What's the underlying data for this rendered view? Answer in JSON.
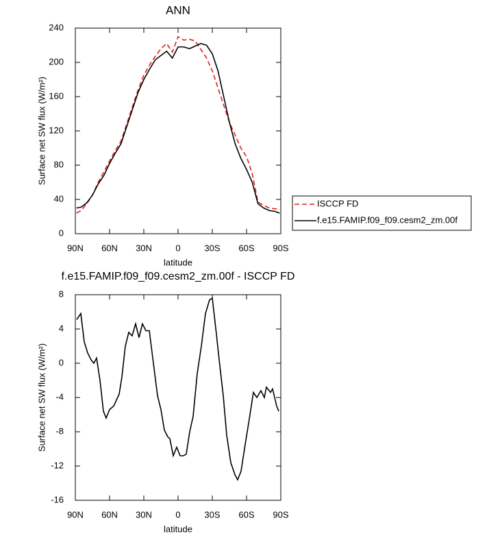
{
  "chart_data": [
    {
      "type": "line",
      "title": "ANN",
      "xlabel": "latitude",
      "ylabel": "Surface net SW flux (W/m²)",
      "x": [
        89,
        85,
        80,
        75,
        70,
        65,
        60,
        55,
        50,
        45,
        40,
        35,
        30,
        25,
        20,
        15,
        10,
        5,
        0,
        -5,
        -10,
        -15,
        -20,
        -25,
        -30,
        -35,
        -40,
        -45,
        -50,
        -55,
        -60,
        -65,
        -70,
        -75,
        -80,
        -85,
        -89
      ],
      "series": [
        {
          "name": "ISCCP FD",
          "color": "#e41a1c",
          "line_style": "dashed",
          "values": [
            24,
            27,
            35,
            45,
            60,
            72,
            85,
            97,
            108,
            128,
            148,
            168,
            185,
            197,
            207,
            216,
            222,
            212,
            230,
            226,
            227,
            225,
            215,
            205,
            190,
            170,
            150,
            130,
            115,
            100,
            90,
            70,
            37,
            33,
            30,
            29,
            29
          ]
        },
        {
          "name": "f.e15.FAMIP.f09_f09.cesm2_zm.00f",
          "color": "#000000",
          "line_style": "solid",
          "values": [
            30,
            31,
            36,
            45,
            58,
            68,
            82,
            94,
            105,
            125,
            145,
            165,
            180,
            192,
            203,
            208,
            213,
            205,
            218,
            218,
            216,
            219,
            222,
            220,
            210,
            190,
            160,
            130,
            105,
            88,
            75,
            60,
            35,
            30,
            27,
            26,
            24
          ]
        }
      ],
      "xlim": [
        90,
        -90
      ],
      "xticks": [
        {
          "value": 90,
          "label": "90N"
        },
        {
          "value": 60,
          "label": "60N"
        },
        {
          "value": 30,
          "label": "30N"
        },
        0,
        {
          "value": -30,
          "label": "30S"
        },
        {
          "value": -60,
          "label": "60S"
        },
        {
          "value": -90,
          "label": "90S"
        }
      ],
      "ylim": [
        0,
        240
      ],
      "yticks": [
        0,
        40,
        80,
        120,
        160,
        200,
        240
      ],
      "legend": "right"
    },
    {
      "type": "line",
      "title": "f.e15.FAMIP.f09_f09.cesm2_zm.00f - ISCCP FD",
      "xlabel": "latitude",
      "ylabel": "Surface net SW flux (W/m²)",
      "x": [
        88.8,
        85.2,
        82.2,
        79.2,
        76.2,
        73.8,
        71.4,
        68.4,
        65.4,
        63,
        60,
        56.4,
        51.6,
        49.2,
        46.2,
        43.2,
        40.2,
        37.2,
        34.2,
        31.2,
        28.2,
        25.2,
        21.6,
        18,
        15,
        12,
        9,
        7.2,
        4.2,
        1.2,
        -1.8,
        -4.8,
        -7.2,
        -10.2,
        -13.2,
        -16.8,
        -20.4,
        -24,
        -27.6,
        -30,
        -33.6,
        -36,
        -39.6,
        -42.6,
        -46.2,
        -49.8,
        -52.2,
        -55.2,
        -58.2,
        -63,
        -66,
        -69,
        -72.6,
        -75.6,
        -77.4,
        -81,
        -82.8,
        -86.4,
        -88.2
      ],
      "series": [
        {
          "color": "#000000",
          "line_style": "solid",
          "values": [
            5.1,
            5.8,
            2.5,
            1.2,
            0.4,
            0,
            0.6,
            -2,
            -5.6,
            -6.4,
            -5.4,
            -5,
            -3.6,
            -1.6,
            2,
            3.6,
            3.2,
            4.6,
            3,
            4.6,
            3.8,
            3.8,
            0,
            -3.8,
            -5.4,
            -7.8,
            -8.6,
            -8.8,
            -10.8,
            -9.8,
            -10.8,
            -10.8,
            -10.6,
            -8,
            -6.2,
            -1.2,
            2,
            5.8,
            7.4,
            7.6,
            3.4,
            0.4,
            -3.8,
            -8.4,
            -11.6,
            -13,
            -13.6,
            -12.6,
            -10,
            -6,
            -3.4,
            -4,
            -3.2,
            -4,
            -2.8,
            -3.4,
            -3,
            -5,
            -5.6
          ]
        }
      ],
      "xlim": [
        90,
        -90
      ],
      "xticks": [
        {
          "value": 90,
          "label": "90N"
        },
        {
          "value": 60,
          "label": "60N"
        },
        {
          "value": 30,
          "label": "30N"
        },
        0,
        {
          "value": -30,
          "label": "30S"
        },
        {
          "value": -60,
          "label": "60S"
        },
        {
          "value": -90,
          "label": "90S"
        }
      ],
      "ylim": [
        -16,
        8
      ],
      "yticks": [
        -16,
        -12,
        -8,
        -4,
        0,
        4,
        8
      ]
    }
  ]
}
